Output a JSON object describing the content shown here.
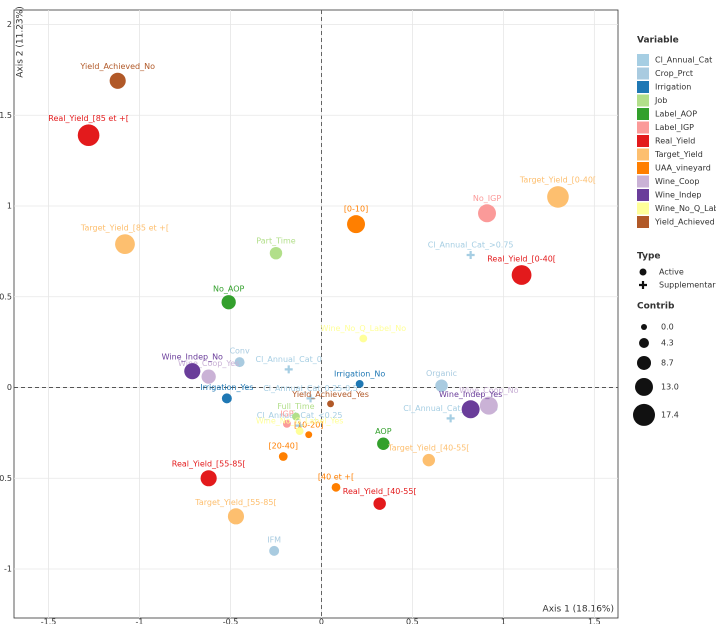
{
  "chart_data": {
    "type": "scatter",
    "xlabel": "Axis 1 (18.16%)",
    "ylabel": "Axis 2 (11.23%)",
    "xlim": [
      -1.69,
      1.63
    ],
    "ylim": [
      -1.27,
      2.08
    ],
    "xticks": [
      -1.5,
      -1,
      -0.5,
      0,
      0.5,
      1,
      1.5
    ],
    "yticks": [
      -1,
      -0.5,
      0,
      0.5,
      1,
      1.5,
      2
    ],
    "grid": true,
    "legend_title": "Variable",
    "type_legend": {
      "title": "Type",
      "labels": [
        "Active",
        "Supplementary"
      ]
    },
    "size_legend": {
      "title": "Contrib",
      "values": [
        {
          "value": 0,
          "label": "0.0"
        },
        4.3,
        8.7,
        {
          "value": 13,
          "label": "13.0"
        },
        17.4
      ]
    },
    "series": [
      {
        "name": "Cl_Annual_Cat",
        "color": "#a6cee3",
        "marker": "cross",
        "labels": [
          "Cl_Annual_Cat_>0.75",
          "Cl_Annual_Cat_0",
          "Cl_Annual_Cat_0.25-0.5",
          "Cl_Annual_Cat_0.5-0.75",
          "Cl_Annual_Cat_<0.25"
        ],
        "x": [
          0.82,
          -0.18,
          -0.06,
          0.71,
          -0.12
        ],
        "y": [
          0.73,
          0.1,
          -0.06,
          -0.17,
          -0.21
        ]
      },
      {
        "name": "Crop_Prct",
        "color": "#a9cbe0",
        "marker": "circle",
        "labels": [
          "Conv",
          "Organic",
          "IFM"
        ],
        "x": [
          -0.45,
          0.66,
          -0.26
        ],
        "y": [
          0.14,
          0.01,
          -0.9
        ],
        "sizes": [
          4.3,
          7,
          4.3
        ]
      },
      {
        "name": "Irrigation",
        "color": "#1f78b4",
        "marker": "circle",
        "labels": [
          "Irrigation_No",
          "Irrigation_Yes"
        ],
        "x": [
          0.21,
          -0.52
        ],
        "y": [
          0.02,
          -0.06
        ],
        "sizes": [
          2,
          4.3
        ]
      },
      {
        "name": "Job",
        "color": "#b2df8a",
        "marker": "circle",
        "labels": [
          "Part_Time",
          "Full_Time"
        ],
        "x": [
          -0.25,
          -0.14
        ],
        "y": [
          0.74,
          -0.16
        ],
        "sizes": [
          7,
          2
        ]
      },
      {
        "name": "Label_AOP",
        "color": "#33a02c",
        "marker": "circle",
        "labels": [
          "No_AOP",
          "AOP"
        ],
        "x": [
          -0.51,
          0.34
        ],
        "y": [
          0.47,
          -0.31
        ],
        "sizes": [
          9,
          7
        ]
      },
      {
        "name": "Label_IGP",
        "color": "#fb9a99",
        "marker": "circle",
        "labels": [
          "No_IGP",
          "IGP"
        ],
        "x": [
          0.91,
          -0.19
        ],
        "y": [
          0.96,
          -0.2
        ],
        "sizes": [
          13,
          2
        ]
      },
      {
        "name": "Real_Yield",
        "color": "#e31a1c",
        "marker": "circle",
        "labels": [
          "Real_Yield_[85 et +[",
          "Real_Yield_[0-40[",
          "Real_Yield_[55-85[",
          "Real_Yield_[40-55["
        ],
        "x": [
          -1.28,
          1.1,
          -0.62,
          0.32
        ],
        "y": [
          1.39,
          0.62,
          -0.5,
          -0.64
        ],
        "sizes": [
          17,
          15,
          11,
          7
        ]
      },
      {
        "name": "Target_Yield",
        "color": "#fdbf6f",
        "marker": "circle",
        "labels": [
          "Target_Yield_[85 et +[",
          "Target_Yield_[0-40[",
          "Target_Yield_[40-55[",
          "Target_Yield_[55-85["
        ],
        "x": [
          -1.08,
          1.3,
          0.59,
          -0.47
        ],
        "y": [
          0.79,
          1.05,
          -0.4,
          -0.71
        ],
        "sizes": [
          15,
          17,
          7,
          11
        ]
      },
      {
        "name": "UAA_vineyard",
        "color": "#ff7f00",
        "marker": "circle",
        "labels": [
          "[0-10]",
          "[10-20]",
          "[20-40]",
          "[40 et +["
        ],
        "x": [
          0.19,
          -0.07,
          -0.21,
          0.08
        ],
        "y": [
          0.9,
          -0.26,
          -0.38,
          -0.55
        ],
        "sizes": [
          13,
          1,
          3,
          3
        ]
      },
      {
        "name": "Wine_Coop",
        "color": "#cab2d6",
        "marker": "circle",
        "labels": [
          "Wine_Coop_No",
          "Wine_Coop_Yes"
        ],
        "x": [
          0.92,
          -0.62
        ],
        "y": [
          -0.1,
          0.06
        ],
        "sizes": [
          13,
          9
        ]
      },
      {
        "name": "Wine_Indep",
        "color": "#6a3d9a",
        "marker": "circle",
        "labels": [
          "Wine_Indep_No",
          "Wine_Indep_Yes"
        ],
        "x": [
          -0.71,
          0.82
        ],
        "y": [
          0.09,
          -0.12
        ],
        "sizes": [
          11,
          13
        ]
      },
      {
        "name": "Wine_No_Q_Label",
        "color": "#ffff99",
        "marker": "circle",
        "labels": [
          "Wine_No_Q_Label_No",
          "Wine_No_Q_Label_Yes"
        ],
        "x": [
          0.23,
          -0.12
        ],
        "y": [
          0.27,
          -0.24
        ],
        "sizes": [
          2,
          2
        ]
      },
      {
        "name": "Yield_Achieved",
        "color": "#b15928",
        "marker": "circle",
        "labels": [
          "Yield_Achieved_No",
          "Yield_Achieved_Yes"
        ],
        "x": [
          -1.12,
          0.05
        ],
        "y": [
          1.69,
          -0.09
        ],
        "sizes": [
          11,
          1
        ]
      }
    ]
  }
}
